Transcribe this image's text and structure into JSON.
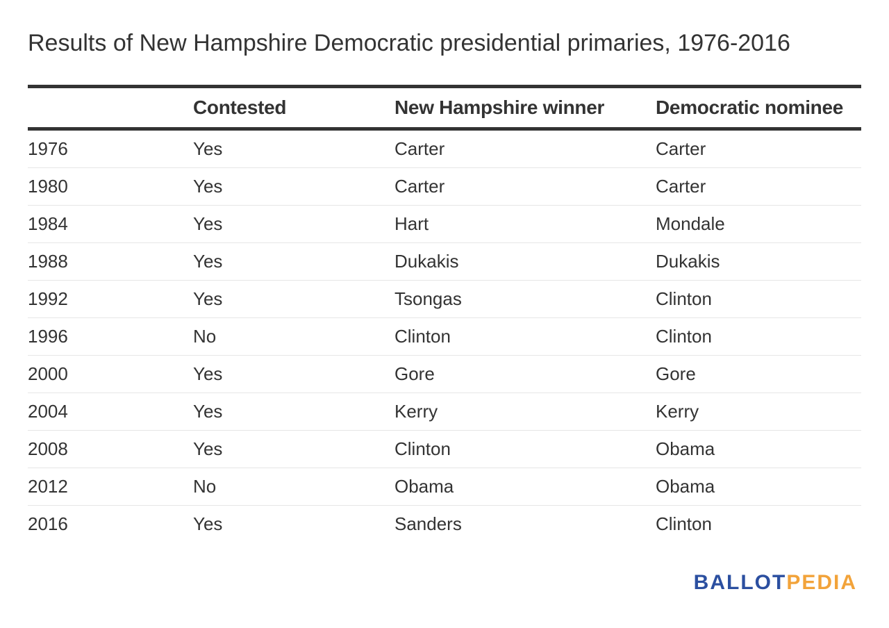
{
  "chart_data": {
    "type": "table",
    "title": "Results of New Hampshire Democratic presidential primaries, 1976-2016",
    "columns": [
      "",
      "Contested",
      "New Hampshire winner",
      "Democratic nominee"
    ],
    "rows": [
      [
        "1976",
        "Yes",
        "Carter",
        "Carter"
      ],
      [
        "1980",
        "Yes",
        "Carter",
        "Carter"
      ],
      [
        "1984",
        "Yes",
        "Hart",
        "Mondale"
      ],
      [
        "1988",
        "Yes",
        "Dukakis",
        "Dukakis"
      ],
      [
        "1992",
        "Yes",
        "Tsongas",
        "Clinton"
      ],
      [
        "1996",
        "No",
        "Clinton",
        "Clinton"
      ],
      [
        "2000",
        "Yes",
        "Gore",
        "Gore"
      ],
      [
        "2004",
        "Yes",
        "Kerry",
        "Kerry"
      ],
      [
        "2008",
        "Yes",
        "Clinton",
        "Obama"
      ],
      [
        "2012",
        "No",
        "Obama",
        "Obama"
      ],
      [
        "2016",
        "Yes",
        "Sanders",
        "Clinton"
      ]
    ]
  },
  "logo": {
    "part1": "BALLOT",
    "part2": "PEDIA",
    "colors": {
      "part1": "#2b4fa0",
      "part2": "#f2a33a"
    }
  }
}
